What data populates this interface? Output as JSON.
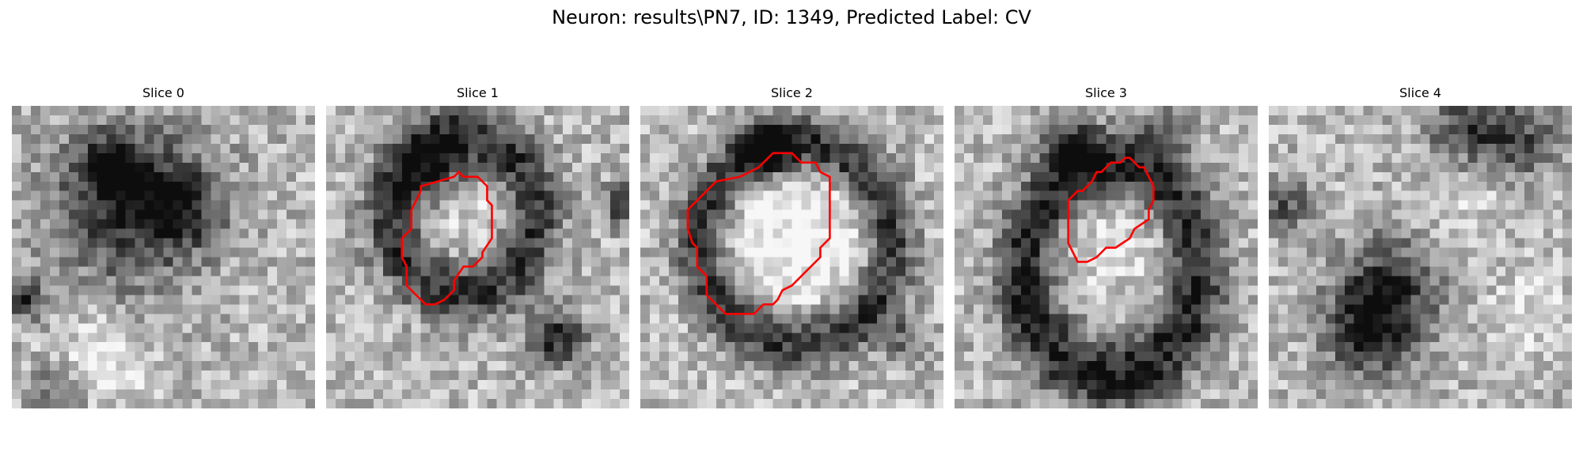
{
  "title": "Neuron: results\\PN7, ID: 1349, Predicted Label: CV",
  "overlay_color": "#ff0000",
  "panels": [
    {
      "title": "Slice 0",
      "has_contour": false
    },
    {
      "title": "Slice 1",
      "has_contour": true
    },
    {
      "title": "Slice 2",
      "has_contour": true
    },
    {
      "title": "Slice 3",
      "has_contour": true
    },
    {
      "title": "Slice 4",
      "has_contour": false
    }
  ]
}
